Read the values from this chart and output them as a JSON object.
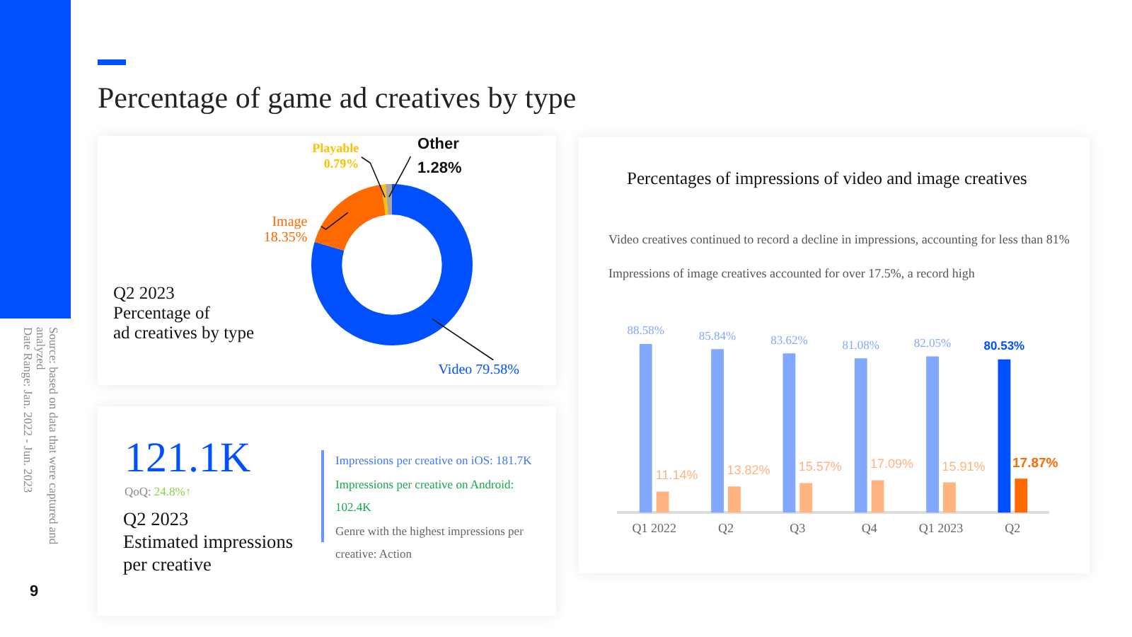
{
  "chart_data": [
    {
      "type": "donut",
      "title": "Percentage of game ad creatives by type",
      "subtitle": "Q2 2023\nPercentage of\nad creatives by type",
      "categories": [
        "Video",
        "Image",
        "Playable",
        "Other"
      ],
      "values": [
        79.58,
        18.35,
        0.79,
        1.28
      ],
      "colors": [
        "#0050ff",
        "#ff6a00",
        "#ffc000",
        "#a6a6a6"
      ],
      "value_labels": [
        "79.58%",
        "18.35%",
        "0.79%",
        "1.28%"
      ],
      "annotations": [
        "Source: based on data that were captured and analyzed",
        "Date Range: Jan. 2022 - Jun. 2023",
        "9"
      ]
    },
    {
      "type": "other",
      "annotations": [
        "121.1K",
        "QoQ:",
        "24.8%↑",
        "Q2 2023\nEstimated impressions\nper creative",
        "Impressions per creative on iOS: 181.7K",
        "Impressions per creative on Android: 102.4K",
        "Genre with the highest impressions per creative: Action"
      ]
    },
    {
      "type": "bar",
      "title": "Percentages of impressions of video and image creatives",
      "annotations": [
        "Video creatives continued to record a decline in impressions, accounting for less than 81%",
        "Impressions of image creatives accounted for over 17.5%, a record high"
      ],
      "categories": [
        "Q1 2022",
        "Q2",
        "Q3",
        "Q4",
        "Q1 2023",
        "Q2"
      ],
      "series": [
        {
          "colors": [
            "#82a9ff",
            "#82a9ff",
            "#82a9ff",
            "#82a9ff",
            "#82a9ff",
            "#0050ff"
          ],
          "values": [
            88.58,
            85.84,
            83.62,
            81.08,
            82.05,
            80.53
          ],
          "value_labels": [
            "88.58%",
            "85.84%",
            "83.62%",
            "81.08%",
            "82.05%",
            "80.53%"
          ]
        },
        {
          "colors": [
            "#ffb482",
            "#ffb482",
            "#ffb482",
            "#ffb482",
            "#ffb482",
            "#ff6a00"
          ],
          "values": [
            11.14,
            13.82,
            15.57,
            17.09,
            15.91,
            17.87
          ],
          "value_labels": [
            "11.14%",
            "13.82%",
            "15.57%",
            "17.09%",
            "15.91%",
            "17.87%"
          ]
        }
      ]
    }
  ]
}
